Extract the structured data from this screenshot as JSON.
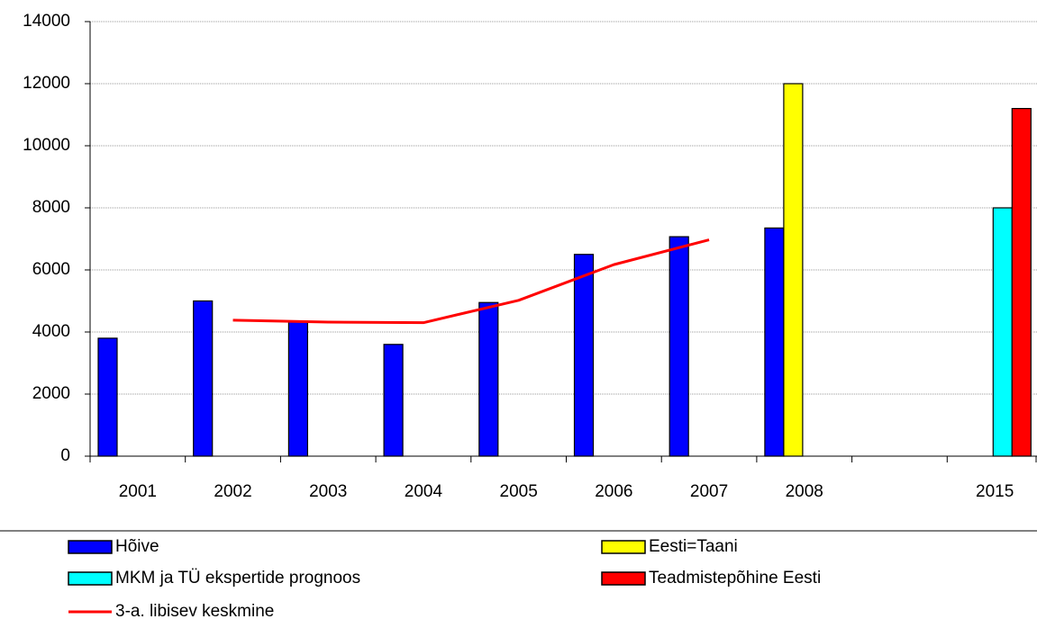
{
  "chart_data": {
    "type": "bar",
    "categories": [
      "2001",
      "2002",
      "2003",
      "2004",
      "2005",
      "2006",
      "2007",
      "2008",
      null,
      "2015"
    ],
    "series": [
      {
        "name": "Hõive",
        "color": "#0000ff",
        "values": [
          3800,
          5000,
          4350,
          3600,
          4950,
          6500,
          7070,
          7350,
          null,
          null
        ]
      },
      {
        "name": "Eesti=Taani",
        "color": "#ffff00",
        "values": [
          null,
          null,
          null,
          null,
          null,
          null,
          null,
          12000,
          null,
          null
        ]
      },
      {
        "name": "MKM ja TÜ ekspertide prognoos",
        "color": "#00ffff",
        "values": [
          null,
          null,
          null,
          null,
          null,
          null,
          null,
          null,
          null,
          8000
        ]
      },
      {
        "name": "Teadmistepõhine Eesti",
        "color": "#ff0000",
        "values": [
          null,
          null,
          null,
          null,
          null,
          null,
          null,
          null,
          null,
          11200
        ]
      },
      {
        "name": "3-a. libisev keskmine",
        "type": "line",
        "color": "#ff0000",
        "values": [
          null,
          4380,
          4320,
          4300,
          5020,
          6170,
          6970,
          null,
          null,
          null
        ]
      }
    ],
    "ylim": [
      0,
      14000
    ],
    "yticks": [
      0,
      2000,
      4000,
      6000,
      8000,
      10000,
      12000,
      14000
    ],
    "grid": true
  }
}
